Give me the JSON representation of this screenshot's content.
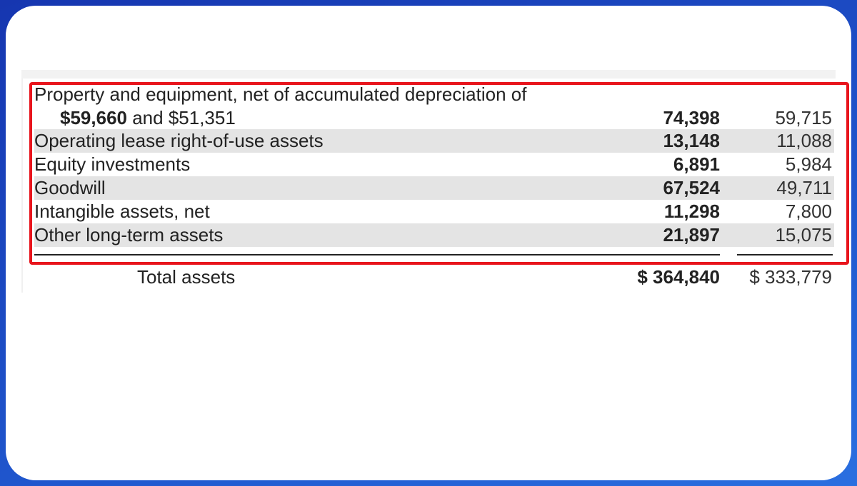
{
  "table": {
    "rows": [
      {
        "label_line1": "Property and equipment, net of accumulated depreciation of",
        "label_bold": "$59,660",
        "label_rest": "and $51,351",
        "current": "74,398",
        "prior": "59,715"
      },
      {
        "label": "Operating lease right-of-use assets",
        "current": "13,148",
        "prior": "11,088"
      },
      {
        "label": "Equity investments",
        "current": "6,891",
        "prior": "5,984"
      },
      {
        "label": "Goodwill",
        "current": "67,524",
        "prior": "49,711"
      },
      {
        "label": "Intangible assets, net",
        "current": "11,298",
        "prior": "7,800"
      },
      {
        "label": "Other long-term assets",
        "current": "21,897",
        "prior": "15,075"
      }
    ],
    "total": {
      "label": "Total assets",
      "current": "$ 364,840",
      "prior": "$ 333,779"
    }
  }
}
